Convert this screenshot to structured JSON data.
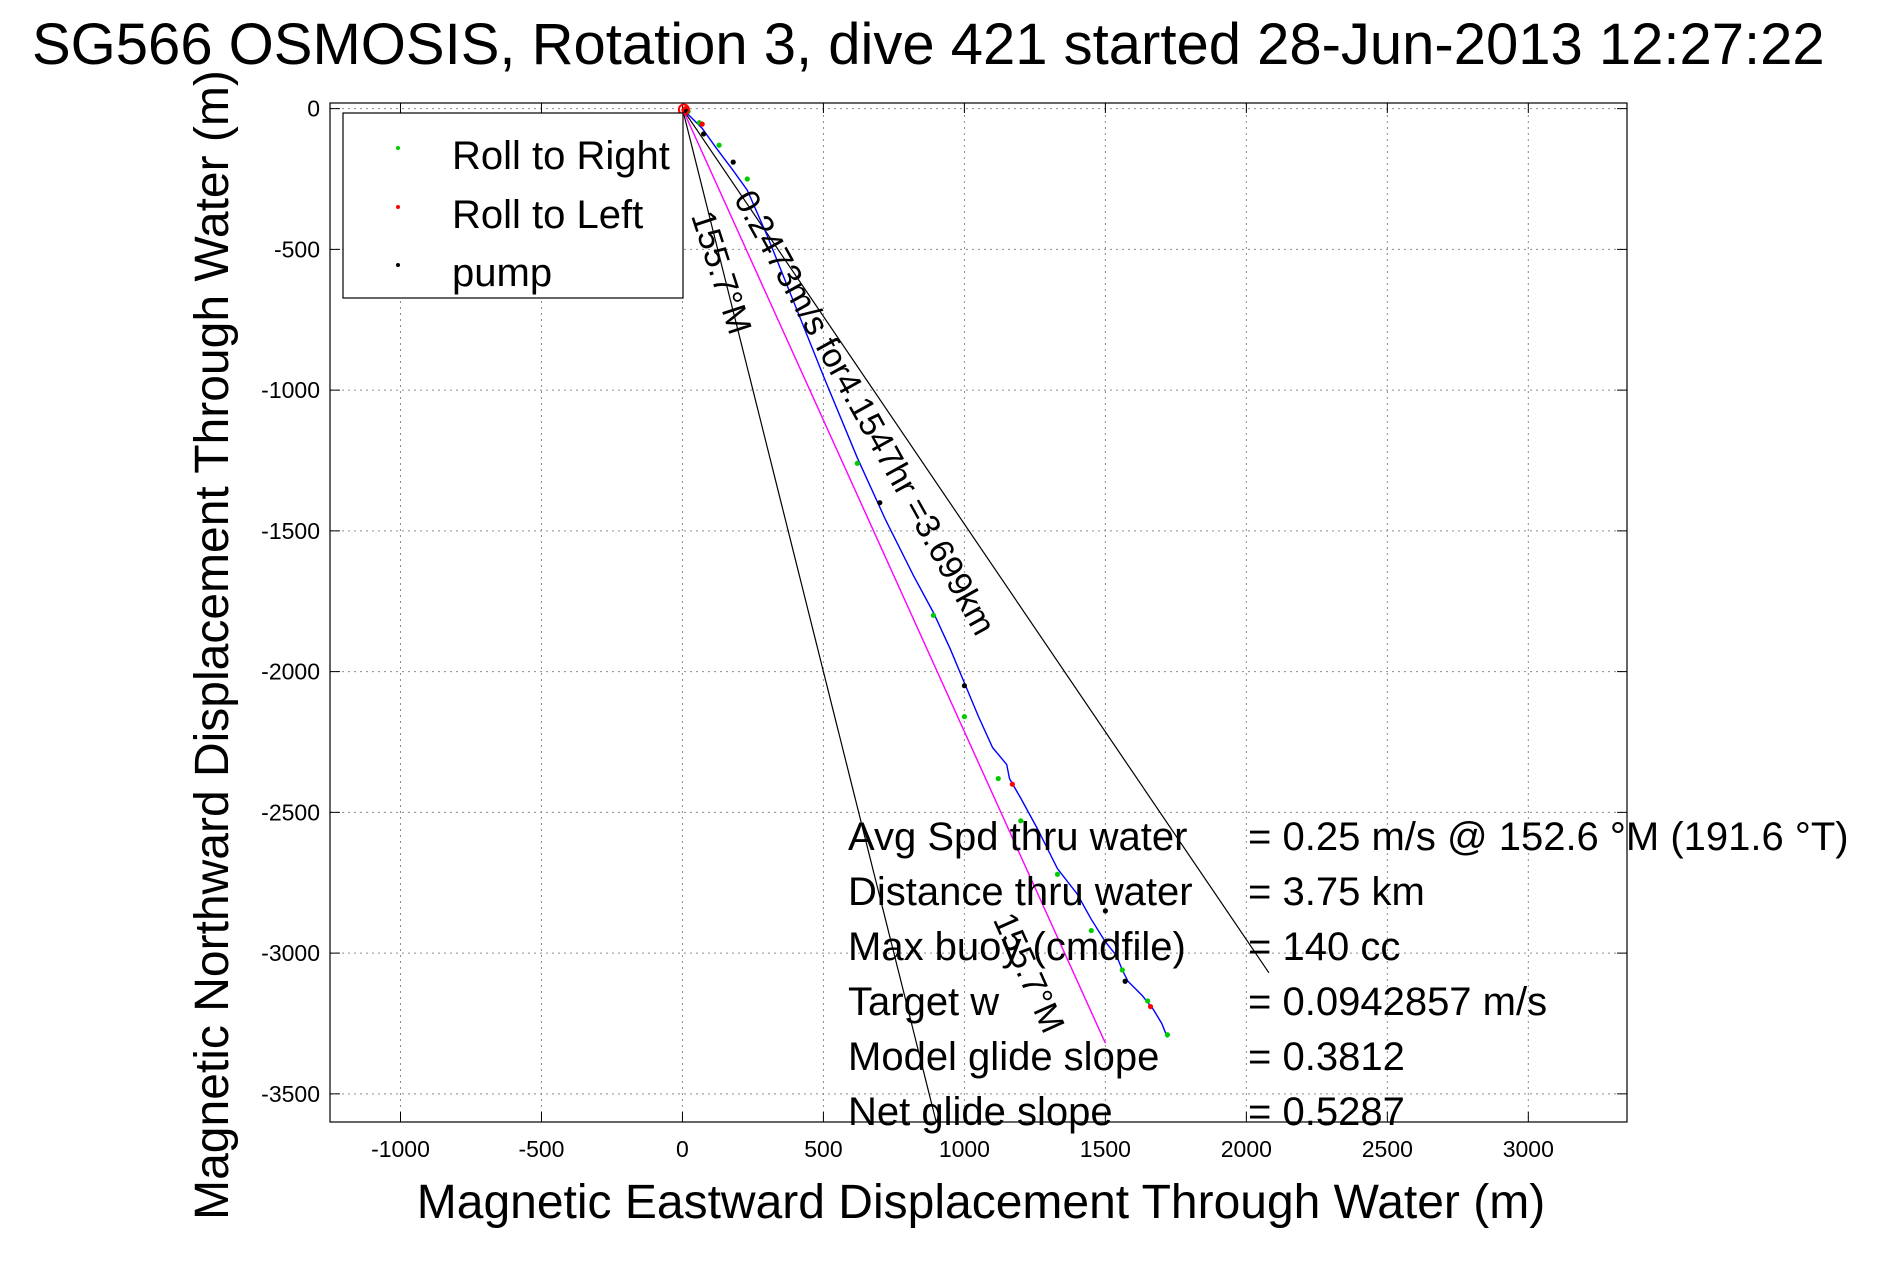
{
  "chart_data": {
    "type": "scatter",
    "title": "SG566 OSMOSIS, Rotation 3, dive 421 started 28-Jun-2013 12:27:22",
    "xlabel": "Magnetic Eastward Displacement Through Water (m)",
    "ylabel": "Magnetic Northward Displacement Through Water (m)",
    "xlim": [
      -1250,
      3350
    ],
    "ylim": [
      -3600,
      20
    ],
    "xticks": [
      -1000,
      -500,
      0,
      500,
      1000,
      1500,
      2000,
      2500,
      3000
    ],
    "yticks": [
      0,
      -500,
      -1000,
      -1500,
      -2000,
      -2500,
      -3000,
      -3500
    ],
    "grid": true,
    "legend_position": "top-left",
    "series": [
      {
        "name": "Roll to Right",
        "color": "#00cc00",
        "marker": "dot",
        "x": [
          20,
          60,
          130,
          230,
          620,
          890,
          1000,
          1120,
          1200,
          1330,
          1450,
          1560,
          1650,
          1720
        ],
        "y": [
          -10,
          -50,
          -130,
          -250,
          -1260,
          -1800,
          -2160,
          -2380,
          -2530,
          -2720,
          -2920,
          -3060,
          -3170,
          -3290
        ]
      },
      {
        "name": "Roll to Left",
        "color": "#ff0000",
        "marker": "dot",
        "x": [
          5,
          10,
          15,
          70,
          1170,
          1660
        ],
        "y": [
          -5,
          0,
          -8,
          -55,
          -2400,
          -3190
        ]
      },
      {
        "name": "pump",
        "color": "#000000",
        "marker": "dot",
        "x": [
          15,
          75,
          180,
          700,
          1000,
          1500,
          1570
        ],
        "y": [
          -10,
          -90,
          -190,
          -1400,
          -2050,
          -2850,
          -3100
        ]
      }
    ],
    "track": {
      "name": "",
      "color": "#0000ff",
      "x": [
        0,
        30,
        70,
        120,
        180,
        230,
        300,
        400,
        500,
        620,
        720,
        820,
        890,
        950,
        1000,
        1050,
        1100,
        1150,
        1160,
        1200,
        1260,
        1330,
        1400,
        1450,
        1500,
        1540,
        1560,
        1580,
        1630,
        1670,
        1700,
        1720
      ],
      "y": [
        0,
        -30,
        -70,
        -140,
        -220,
        -290,
        -450,
        -700,
        -950,
        -1240,
        -1460,
        -1660,
        -1790,
        -1920,
        -2040,
        -2160,
        -2270,
        -2330,
        -2380,
        -2450,
        -2560,
        -2700,
        -2790,
        -2880,
        -2960,
        -3010,
        -3060,
        -3100,
        -3150,
        -3200,
        -3250,
        -3300
      ]
    },
    "glide_line": {
      "color": "#ff00ff",
      "x": [
        0,
        1500
      ],
      "y": [
        0,
        -3320
      ]
    },
    "cone_lines": [
      {
        "color": "#000000",
        "x": [
          0,
          2080
        ],
        "y": [
          0,
          -3070
        ]
      },
      {
        "color": "#000000",
        "x": [
          0,
          900
        ],
        "y": [
          0,
          -3600
        ]
      }
    ],
    "annotations": [
      {
        "text": "0.2473m/s for4.1547hr =3.699km",
        "x": 180,
        "y": -320,
        "angle_deg": 61
      },
      {
        "text": "155.7°M",
        "x": 30,
        "y": -380,
        "angle_deg": 72
      },
      {
        "text": "155.7°M",
        "x": 1100,
        "y": -2880,
        "angle_deg": 66
      }
    ],
    "stats": [
      {
        "label": "Avg Spd thru water",
        "value": "=  0.25 m/s @ 152.6 °M (191.6 °T)"
      },
      {
        "label": "Distance thru water",
        "value": "=  3.75 km"
      },
      {
        "label": "Max buoy (cmdfile)",
        "value": "= 140 cc"
      },
      {
        "label": "Target w",
        "value": "= 0.0942857 m/s"
      },
      {
        "label": "Model glide slope",
        "value": "= 0.3812"
      },
      {
        "label": "Net glide slope",
        "value": "= 0.5287"
      }
    ]
  }
}
